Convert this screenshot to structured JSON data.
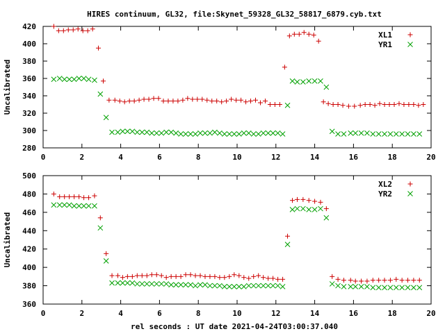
{
  "figure": {
    "title": "HIRES continuum, GL32, file:Skynet_59328_GL32_58817_6879.cyb.txt",
    "xlabel": "rel seconds : UT date 2021-04-24T03:00:37.040"
  },
  "chart_data": [
    {
      "type": "scatter",
      "ylabel": "Uncalibrated",
      "xlim": [
        0,
        20
      ],
      "ylim": [
        280,
        420
      ],
      "xticks": [
        0,
        2,
        4,
        6,
        8,
        10,
        12,
        14,
        16,
        18,
        20
      ],
      "yticks": [
        280,
        300,
        320,
        340,
        360,
        380,
        400,
        420
      ],
      "legend_position": "top-right",
      "grid": false,
      "series": [
        {
          "name": "XL1",
          "marker": "plus",
          "color": "#cc0000",
          "x": [
            0.55,
            0.8,
            1.05,
            1.3,
            1.55,
            1.8,
            2.05,
            2.3,
            2.55,
            2.85,
            3.1,
            3.4,
            3.7,
            3.95,
            4.2,
            4.45,
            4.7,
            4.95,
            5.2,
            5.45,
            5.7,
            5.95,
            6.2,
            6.45,
            6.7,
            6.95,
            7.2,
            7.45,
            7.7,
            7.95,
            8.2,
            8.45,
            8.7,
            8.95,
            9.2,
            9.45,
            9.7,
            9.95,
            10.2,
            10.45,
            10.7,
            10.95,
            11.2,
            11.45,
            11.7,
            11.95,
            12.2,
            12.45,
            12.7,
            12.95,
            13.2,
            13.45,
            13.7,
            13.95,
            14.2,
            14.45,
            14.7,
            14.95,
            15.2,
            15.45,
            15.75,
            16.05,
            16.35,
            16.6,
            16.85,
            17.1,
            17.35,
            17.6,
            17.85,
            18.1,
            18.35,
            18.6,
            18.85,
            19.1,
            19.35,
            19.6
          ],
          "y": [
            420,
            415,
            415,
            416,
            416,
            417,
            415,
            415,
            417,
            395,
            357,
            335,
            335,
            334,
            333,
            334,
            334,
            335,
            336,
            336,
            337,
            337,
            334,
            334,
            334,
            334,
            335,
            337,
            336,
            336,
            336,
            335,
            334,
            334,
            333,
            334,
            336,
            335,
            335,
            333,
            334,
            335,
            332,
            334,
            330,
            330,
            330,
            373,
            409,
            411,
            411,
            413,
            411,
            410,
            403,
            333,
            331,
            330,
            330,
            329,
            328,
            328,
            329,
            330,
            330,
            329,
            331,
            330,
            330,
            330,
            331,
            330,
            330,
            330,
            329,
            330
          ],
          "x_full": [
            0.55,
            0.82,
            1.08,
            1.35,
            1.62,
            1.88,
            2.15,
            2.42,
            2.68,
            2.95,
            3.22,
            3.48,
            3.75,
            4.02,
            4.28,
            4.55,
            4.82,
            5.08,
            5.35,
            5.62,
            5.88,
            6.15,
            6.42,
            6.68,
            6.95,
            7.22,
            7.48,
            7.75,
            8.02,
            8.28,
            8.55,
            8.82,
            9.08,
            9.35,
            9.62,
            9.88,
            10.15,
            10.42,
            10.68,
            10.95,
            11.22,
            11.48,
            11.75,
            12.02,
            12.28,
            12.55,
            12.82,
            13.08,
            13.35,
            13.62,
            13.88,
            14.15,
            14.42,
            14.68,
            14.95,
            15.22,
            15.48,
            15.75,
            16.02,
            16.28,
            16.55,
            16.82,
            17.08,
            17.35,
            17.62,
            17.88,
            18.15,
            18.42,
            18.68,
            18.95,
            19.22,
            19.48,
            19.62
          ]
        },
        {
          "name": "YR1",
          "marker": "cross",
          "color": "#00a000",
          "x": [
            0.55,
            0.85,
            1.1,
            1.35,
            1.6,
            1.85,
            2.1,
            2.35,
            2.65,
            2.95,
            3.25,
            3.55,
            3.85,
            4.1,
            4.35,
            4.6,
            4.85,
            5.1,
            5.35,
            5.6,
            5.85,
            6.1,
            6.35,
            6.6,
            6.85,
            7.1,
            7.35,
            7.6,
            7.85,
            8.1,
            8.35,
            8.6,
            8.85,
            9.1,
            9.35,
            9.6,
            9.85,
            10.1,
            10.35,
            10.6,
            10.85,
            11.1,
            11.35,
            11.6,
            11.85,
            12.1,
            12.35,
            12.6,
            12.85,
            13.1,
            13.4,
            13.7,
            14.0,
            14.3,
            14.6,
            14.9,
            15.2,
            15.5,
            15.85,
            16.1,
            16.4,
            16.7,
            17.0,
            17.3,
            17.6,
            17.9,
            18.2,
            18.5,
            18.8,
            19.1,
            19.4
          ],
          "y": [
            359,
            360,
            359,
            359,
            359,
            360,
            360,
            359,
            358,
            342,
            315,
            298,
            298,
            299,
            299,
            299,
            298,
            298,
            298,
            297,
            297,
            297,
            298,
            298,
            297,
            296,
            296,
            296,
            296,
            297,
            297,
            297,
            298,
            297,
            296,
            296,
            296,
            296,
            297,
            297,
            296,
            296,
            297,
            297,
            297,
            297,
            296,
            329,
            357,
            356,
            356,
            357,
            357,
            357,
            350,
            299,
            296,
            296,
            297,
            297,
            297,
            297,
            296,
            296,
            296,
            296,
            296,
            296,
            296,
            296,
            296
          ]
        }
      ]
    },
    {
      "type": "scatter",
      "ylabel": "Uncalibrated",
      "xlim": [
        0,
        20
      ],
      "ylim": [
        360,
        500
      ],
      "xticks": [
        0,
        2,
        4,
        6,
        8,
        10,
        12,
        14,
        16,
        18,
        20
      ],
      "yticks": [
        360,
        380,
        400,
        420,
        440,
        460,
        480,
        500
      ],
      "legend_position": "top-right",
      "grid": false,
      "series": [
        {
          "name": "XL2",
          "marker": "plus",
          "color": "#cc0000",
          "x": [
            0.55,
            0.85,
            1.1,
            1.35,
            1.6,
            1.85,
            2.1,
            2.35,
            2.65,
            2.95,
            3.25,
            3.55,
            3.85,
            4.1,
            4.35,
            4.6,
            4.85,
            5.1,
            5.35,
            5.6,
            5.85,
            6.1,
            6.35,
            6.6,
            6.85,
            7.1,
            7.35,
            7.6,
            7.85,
            8.1,
            8.35,
            8.6,
            8.85,
            9.1,
            9.35,
            9.6,
            9.85,
            10.1,
            10.35,
            10.6,
            10.85,
            11.1,
            11.35,
            11.6,
            11.85,
            12.1,
            12.35,
            12.6,
            12.85,
            13.1,
            13.4,
            13.7,
            14.0,
            14.3,
            14.6,
            14.9,
            15.2,
            15.5,
            15.85,
            16.1,
            16.4,
            16.7,
            17.0,
            17.3,
            17.6,
            17.9,
            18.2,
            18.5,
            18.8,
            19.1,
            19.4
          ],
          "y": [
            480,
            477,
            477,
            477,
            477,
            477,
            476,
            476,
            478,
            454,
            415,
            391,
            391,
            389,
            390,
            390,
            391,
            391,
            391,
            392,
            392,
            391,
            389,
            390,
            390,
            390,
            392,
            392,
            391,
            391,
            390,
            390,
            390,
            389,
            389,
            390,
            392,
            391,
            389,
            388,
            390,
            391,
            389,
            388,
            388,
            387,
            387,
            434,
            473,
            474,
            474,
            473,
            472,
            471,
            464,
            390,
            387,
            386,
            386,
            385,
            385,
            385,
            386,
            386,
            386,
            386,
            387,
            386,
            386,
            386,
            386
          ]
        },
        {
          "name": "YR2",
          "marker": "cross",
          "color": "#00a000",
          "x": [
            0.55,
            0.85,
            1.1,
            1.35,
            1.6,
            1.85,
            2.1,
            2.35,
            2.65,
            2.95,
            3.25,
            3.55,
            3.85,
            4.1,
            4.35,
            4.6,
            4.85,
            5.1,
            5.35,
            5.6,
            5.85,
            6.1,
            6.35,
            6.6,
            6.85,
            7.1,
            7.35,
            7.6,
            7.85,
            8.1,
            8.35,
            8.6,
            8.85,
            9.1,
            9.35,
            9.6,
            9.85,
            10.1,
            10.35,
            10.6,
            10.85,
            11.1,
            11.35,
            11.6,
            11.85,
            12.1,
            12.35,
            12.6,
            12.85,
            13.1,
            13.4,
            13.7,
            14.0,
            14.3,
            14.6,
            14.9,
            15.2,
            15.5,
            15.85,
            16.1,
            16.4,
            16.7,
            17.0,
            17.3,
            17.6,
            17.9,
            18.2,
            18.5,
            18.8,
            19.1,
            19.4
          ],
          "y": [
            468,
            468,
            468,
            468,
            467,
            467,
            467,
            467,
            467,
            443,
            407,
            383,
            383,
            383,
            383,
            383,
            382,
            382,
            382,
            382,
            382,
            382,
            382,
            381,
            381,
            381,
            381,
            381,
            380,
            381,
            381,
            380,
            380,
            380,
            379,
            379,
            379,
            379,
            379,
            380,
            380,
            380,
            380,
            380,
            380,
            380,
            379,
            425,
            463,
            464,
            464,
            463,
            463,
            464,
            454,
            382,
            380,
            379,
            379,
            379,
            379,
            379,
            378,
            378,
            378,
            378,
            378,
            378,
            378,
            378,
            378
          ]
        }
      ]
    }
  ]
}
